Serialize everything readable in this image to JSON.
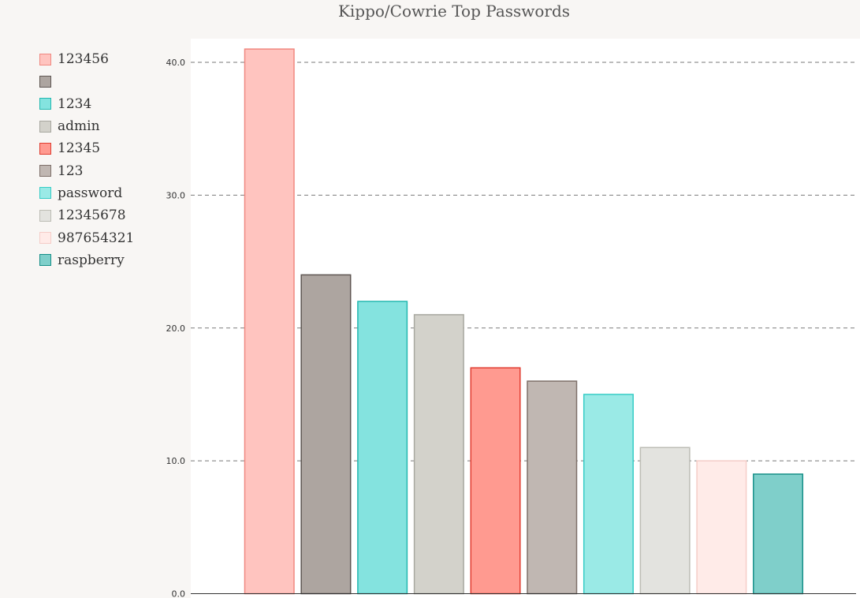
{
  "chart_data": {
    "type": "bar",
    "title": "Kippo/Cowrie Top Passwords",
    "xlabel": "",
    "ylabel": "",
    "ylim": [
      0,
      42
    ],
    "yticks": [
      "0.0",
      "10.0",
      "20.0",
      "30.0",
      "40.0"
    ],
    "grid": true,
    "legend_position": "left",
    "categories": [
      "123456",
      "",
      "1234",
      "admin",
      "12345",
      "123",
      "password",
      "12345678",
      "987654321",
      "raspberry"
    ],
    "values": [
      41,
      24,
      22,
      21,
      17,
      16,
      15,
      11,
      10,
      9
    ],
    "fills": [
      "#ffc4bf",
      "#ada5a0",
      "#84e3df",
      "#d3d2cb",
      "#ff9a90",
      "#c0b7b2",
      "#9aeae6",
      "#e3e3df",
      "#ffebe8",
      "#7fcfca"
    ],
    "strokes": [
      "#f08880",
      "#5e5652",
      "#22b8b0",
      "#a8a8a0",
      "#e03c30",
      "#7e706a",
      "#36ccc6",
      "#bdbdb5",
      "#f5cdc8",
      "#168f88"
    ]
  }
}
